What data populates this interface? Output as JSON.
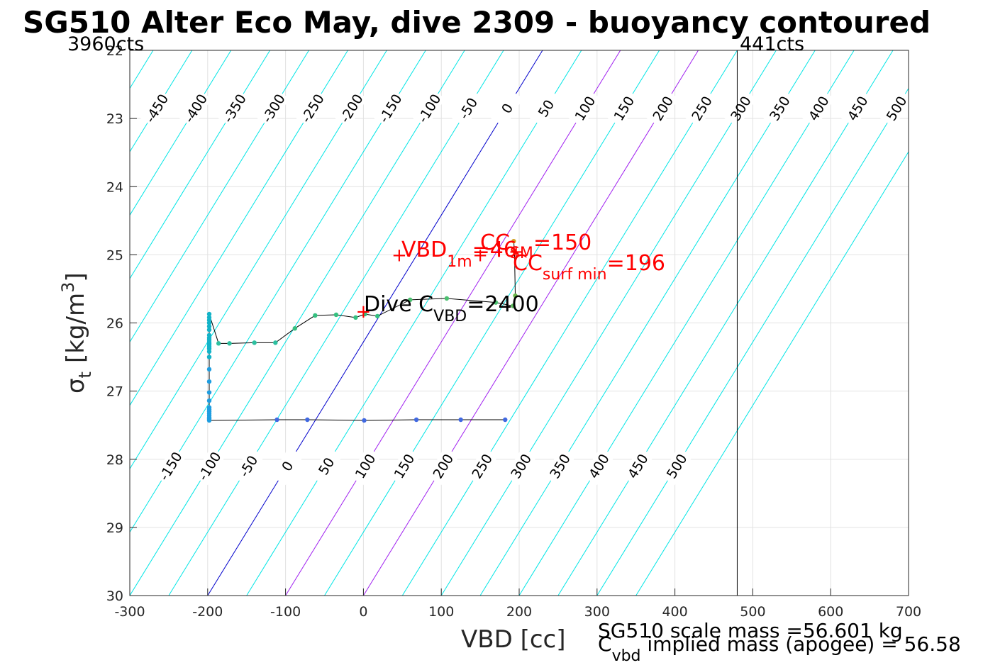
{
  "chart_data": {
    "type": "scatter",
    "title": "SG510 Alter Eco May, dive 2309 - buoyancy contoured",
    "xlabel": "VBD [cc]",
    "ylabel": {
      "main": "σ",
      "sub": "t",
      "unit": "[kg/m",
      "sup": "3",
      "close": "]"
    },
    "xlim": [
      -300,
      700
    ],
    "ylim": [
      22,
      30
    ],
    "y_reversed": true,
    "grid": true,
    "x_ticks": [
      -300,
      -200,
      -100,
      0,
      100,
      200,
      300,
      400,
      500,
      600,
      700
    ],
    "y_ticks": [
      23,
      24,
      25,
      26,
      27,
      28,
      29,
      30
    ],
    "y_tick_labels": [
      "23",
      "24",
      "25",
      "26",
      "27",
      "28",
      "29",
      "30"
    ],
    "vbd_counts": {
      "min_label": "3960cts",
      "max_label": "441cts",
      "max_vbd": 480
    },
    "buoyancy_contours": {
      "spacing": 50,
      "min": -500,
      "max": 550,
      "zero_vbd_at_sigma30": -200,
      "vbd_shift_per_sigma": 53.75,
      "colors": {
        "default": "#00e5e5",
        "zero": "#0000cc",
        "highlight": "#a020f0"
      },
      "highlighted": [
        100,
        200
      ],
      "top_labels": [
        "-450",
        "-400",
        "-350",
        "-300",
        "-250",
        "-200",
        "-150",
        "-100",
        "-50",
        "0",
        "50",
        "100",
        "150",
        "200",
        "250",
        "300",
        "350",
        "400",
        "450",
        "500"
      ],
      "bottom_labels": [
        "-150",
        "-100",
        "-50",
        "0",
        "50",
        "100",
        "150",
        "200",
        "250",
        "300",
        "350",
        "400",
        "450",
        "500"
      ]
    },
    "profile": {
      "x": [
        182,
        125,
        68,
        1,
        -72,
        -111,
        -198,
        -198,
        -198,
        -198,
        -198,
        -198,
        -198,
        -198,
        -198,
        -198,
        -198,
        -198,
        -198,
        -198,
        -198,
        -198,
        -198,
        -198,
        -198,
        -198,
        -198,
        -198,
        -198,
        -198,
        -198,
        -198,
        -198,
        -198,
        -186,
        -172,
        -140,
        -113,
        -88,
        -62,
        -35,
        -10,
        2,
        18,
        60,
        107,
        170,
        192,
        195,
        194,
        193
      ],
      "y": [
        27.42,
        27.42,
        27.42,
        27.43,
        27.42,
        27.42,
        27.43,
        27.41,
        27.39,
        27.36,
        27.33,
        27.3,
        27.27,
        27.24,
        27.14,
        27.02,
        26.86,
        26.68,
        26.5,
        26.42,
        26.38,
        26.35,
        26.32,
        26.3,
        26.28,
        26.25,
        26.22,
        26.18,
        26.1,
        26.05,
        26.0,
        25.96,
        25.92,
        25.87,
        26.3,
        26.3,
        26.29,
        26.29,
        26.08,
        25.89,
        25.88,
        25.92,
        25.87,
        25.9,
        25.66,
        25.64,
        25.7,
        25.75,
        25.6,
        24.95,
        24.8
      ],
      "colors": [
        "#4169e1",
        "#4169e1",
        "#4169e1",
        "#4169e1",
        "#4169e1",
        "#4169e1",
        "#1e9de0",
        "#1e9de0",
        "#1e9de0",
        "#1e9de0",
        "#1e9de0",
        "#1e9de0",
        "#1e9de0",
        "#1e9de0",
        "#1e9de0",
        "#1e9de0",
        "#1e9de0",
        "#1e9de0",
        "#13b3c8",
        "#13b3c8",
        "#13b3c8",
        "#13b3c8",
        "#13b3c8",
        "#13b3c8",
        "#13b3c8",
        "#13b3c8",
        "#13b3c8",
        "#13b3c8",
        "#13b3c8",
        "#13b3c8",
        "#13b3c8",
        "#13b3c8",
        "#13b3c8",
        "#13b3c8",
        "#2dc0a0",
        "#2dc0a0",
        "#2dc0a0",
        "#2dc0a0",
        "#35c080",
        "#35c080",
        "#35c080",
        "#35c080",
        "#35c080",
        "#35c080",
        "#4cc070",
        "#4cc070",
        "#4cc070",
        "#5cb85c",
        "#6ab84c",
        "#b5b520",
        "#d0a020"
      ],
      "line_color": "#000000"
    },
    "markers": [
      {
        "x": 0,
        "y": 25.83,
        "symbol": "+",
        "color": "#ff0000"
      },
      {
        "x": 46,
        "y": 25.0,
        "symbol": "+",
        "color": "#ff0000"
      },
      {
        "x": 150,
        "y": 25.0,
        "symbol": "+",
        "color": "#ff0000"
      },
      {
        "x": 196,
        "y": 24.95,
        "symbol": "+",
        "color": "#ff0000"
      }
    ],
    "annotations": {
      "vbd_1m": {
        "main": "VBD",
        "sub": "1m",
        "value": "=46"
      },
      "cc_sm": {
        "main": "CC",
        "sub": "SM",
        "value": "=150"
      },
      "cc_surf": {
        "main": "CC",
        "sub": "surf min",
        "value": "=196"
      },
      "dive_c": {
        "main": "Dive C",
        "sub": "VBD",
        "value": "=2400"
      }
    },
    "footer": {
      "scale_mass": "SG510 scale mass =56.601 kg",
      "implied_main": "C",
      "implied_sub": "vbd",
      "implied_rest": " implied mass (apogee) = 56.58"
    }
  }
}
